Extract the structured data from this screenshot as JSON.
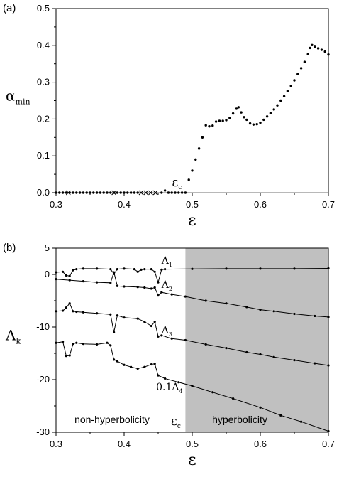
{
  "chart_data": [
    {
      "panel_label": "(a)",
      "type": "scatter",
      "xlabel": "ε",
      "ylabel": {
        "main": "α",
        "sub": "min"
      },
      "xlim": [
        0.3,
        0.7
      ],
      "ylim": [
        0,
        0.5
      ],
      "x_ticks": [
        "0.3",
        "0.4",
        "0.5",
        "0.6",
        "0.7"
      ],
      "y_ticks": [
        "0.0",
        "0.1",
        "0.2",
        "0.3",
        "0.4",
        "0.5"
      ],
      "annotation": {
        "main": "ε",
        "sub": "c",
        "x": 0.487,
        "y": 0.018
      },
      "baseline_y": 0.0,
      "series": [
        {
          "marker": "dot",
          "points": [
            [
              0.3,
              0
            ],
            [
              0.305,
              0
            ],
            [
              0.31,
              0
            ],
            [
              0.315,
              0
            ],
            [
              0.32,
              0
            ],
            [
              0.325,
              0
            ],
            [
              0.33,
              0
            ],
            [
              0.335,
              0
            ],
            [
              0.34,
              0
            ],
            [
              0.345,
              0
            ],
            [
              0.35,
              0
            ],
            [
              0.355,
              0
            ],
            [
              0.36,
              0
            ],
            [
              0.365,
              0
            ],
            [
              0.37,
              0
            ],
            [
              0.375,
              0
            ],
            [
              0.38,
              0
            ],
            [
              0.385,
              0
            ],
            [
              0.39,
              0
            ],
            [
              0.395,
              0
            ],
            [
              0.4,
              0
            ],
            [
              0.405,
              0
            ],
            [
              0.41,
              0
            ],
            [
              0.415,
              0
            ],
            [
              0.42,
              0
            ],
            [
              0.455,
              0
            ],
            [
              0.46,
              0.006
            ],
            [
              0.465,
              0
            ],
            [
              0.47,
              0
            ],
            [
              0.475,
              0
            ],
            [
              0.48,
              0
            ],
            [
              0.485,
              0
            ],
            [
              0.49,
              0
            ],
            [
              0.495,
              0.035
            ],
            [
              0.5,
              0.06
            ],
            [
              0.505,
              0.09
            ],
            [
              0.51,
              0.12
            ],
            [
              0.515,
              0.15
            ],
            [
              0.52,
              0.183
            ],
            [
              0.525,
              0.18
            ],
            [
              0.53,
              0.182
            ],
            [
              0.535,
              0.193
            ],
            [
              0.54,
              0.195
            ],
            [
              0.545,
              0.195
            ],
            [
              0.55,
              0.197
            ],
            [
              0.555,
              0.203
            ],
            [
              0.56,
              0.215
            ],
            [
              0.565,
              0.228
            ],
            [
              0.568,
              0.232
            ],
            [
              0.572,
              0.218
            ],
            [
              0.576,
              0.205
            ],
            [
              0.58,
              0.198
            ],
            [
              0.585,
              0.188
            ],
            [
              0.59,
              0.185
            ],
            [
              0.595,
              0.186
            ],
            [
              0.6,
              0.19
            ],
            [
              0.605,
              0.198
            ],
            [
              0.61,
              0.207
            ],
            [
              0.615,
              0.216
            ],
            [
              0.62,
              0.226
            ],
            [
              0.625,
              0.237
            ],
            [
              0.63,
              0.25
            ],
            [
              0.635,
              0.262
            ],
            [
              0.64,
              0.276
            ],
            [
              0.645,
              0.29
            ],
            [
              0.65,
              0.305
            ],
            [
              0.655,
              0.322
            ],
            [
              0.66,
              0.338
            ],
            [
              0.665,
              0.355
            ],
            [
              0.67,
              0.376
            ],
            [
              0.673,
              0.393
            ],
            [
              0.676,
              0.401
            ],
            [
              0.68,
              0.396
            ],
            [
              0.685,
              0.392
            ],
            [
              0.69,
              0.388
            ],
            [
              0.695,
              0.383
            ],
            [
              0.7,
              0.375
            ]
          ]
        },
        {
          "marker": "x",
          "points": [
            [
              0.318,
              0
            ],
            [
              0.385,
              0
            ],
            [
              0.425,
              0
            ],
            [
              0.432,
              0
            ],
            [
              0.439,
              0
            ],
            [
              0.446,
              0
            ]
          ]
        }
      ]
    },
    {
      "panel_label": "(b)",
      "type": "line",
      "xlabel": "ε",
      "ylabel": {
        "main": "Λ",
        "sub": "k"
      },
      "xlim": [
        0.3,
        0.7
      ],
      "ylim": [
        -30,
        5
      ],
      "x_ticks": [
        "0.3",
        "0.4",
        "0.5",
        "0.6",
        "0.7"
      ],
      "y_ticks": [
        "5",
        "0",
        "-10",
        "-20",
        "-30"
      ],
      "shaded_region": {
        "from": 0.49,
        "to": 0.7,
        "color": "#c0c0c0"
      },
      "region_labels": [
        "non-hyperbolicity",
        "hyperbolicity"
      ],
      "annotation": {
        "main": "ε",
        "sub": "c"
      },
      "series": [
        {
          "label_main": "Λ",
          "label_sub": "1",
          "label_at": [
            0.455,
            2.0
          ],
          "points": [
            [
              0.3,
              0.4
            ],
            [
              0.31,
              0.5
            ],
            [
              0.315,
              -0.2
            ],
            [
              0.32,
              -0.3
            ],
            [
              0.325,
              0.8
            ],
            [
              0.33,
              1.0
            ],
            [
              0.34,
              1.1
            ],
            [
              0.36,
              1.1
            ],
            [
              0.38,
              1.0
            ],
            [
              0.385,
              0.1
            ],
            [
              0.39,
              1.0
            ],
            [
              0.4,
              1.1
            ],
            [
              0.415,
              1.0
            ],
            [
              0.42,
              0.5
            ],
            [
              0.425,
              0.9
            ],
            [
              0.43,
              1.0
            ],
            [
              0.44,
              1.0
            ],
            [
              0.445,
              0.5
            ],
            [
              0.45,
              -1.5
            ],
            [
              0.455,
              0.9
            ],
            [
              0.46,
              1.0
            ],
            [
              0.5,
              1.05
            ],
            [
              0.55,
              1.1
            ],
            [
              0.6,
              1.1
            ],
            [
              0.65,
              1.1
            ],
            [
              0.7,
              1.15
            ]
          ]
        },
        {
          "label_main": "Λ",
          "label_sub": "2",
          "label_at": [
            0.455,
            -2.6
          ],
          "points": [
            [
              0.3,
              -0.9
            ],
            [
              0.32,
              -1.1
            ],
            [
              0.34,
              -1.3
            ],
            [
              0.36,
              -1.5
            ],
            [
              0.38,
              -1.6
            ],
            [
              0.385,
              0.4
            ],
            [
              0.39,
              -2.2
            ],
            [
              0.4,
              -2.3
            ],
            [
              0.42,
              -2.4
            ],
            [
              0.43,
              -2.5
            ],
            [
              0.44,
              -2.7
            ],
            [
              0.445,
              -2.5
            ],
            [
              0.45,
              -4.0
            ],
            [
              0.455,
              -3.4
            ],
            [
              0.47,
              -3.8
            ],
            [
              0.49,
              -4.2
            ],
            [
              0.52,
              -5.0
            ],
            [
              0.55,
              -5.5
            ],
            [
              0.58,
              -6.2
            ],
            [
              0.6,
              -6.7
            ],
            [
              0.62,
              -7.0
            ],
            [
              0.65,
              -7.5
            ],
            [
              0.68,
              -7.9
            ],
            [
              0.7,
              -8.1
            ]
          ]
        },
        {
          "label_main": "Λ",
          "label_sub": "3",
          "label_at": [
            0.455,
            -11.2
          ],
          "points": [
            [
              0.3,
              -7.0
            ],
            [
              0.31,
              -6.9
            ],
            [
              0.315,
              -6.3
            ],
            [
              0.32,
              -5.5
            ],
            [
              0.325,
              -7.0
            ],
            [
              0.33,
              -7.1
            ],
            [
              0.34,
              -7.2
            ],
            [
              0.36,
              -7.4
            ],
            [
              0.38,
              -7.6
            ],
            [
              0.385,
              -11.0
            ],
            [
              0.39,
              -7.8
            ],
            [
              0.4,
              -8.2
            ],
            [
              0.42,
              -8.4
            ],
            [
              0.43,
              -9.0
            ],
            [
              0.44,
              -9.8
            ],
            [
              0.445,
              -9.0
            ],
            [
              0.45,
              -11.8
            ],
            [
              0.455,
              -11.6
            ],
            [
              0.47,
              -12.2
            ],
            [
              0.49,
              -12.5
            ],
            [
              0.52,
              -13.3
            ],
            [
              0.55,
              -14.0
            ],
            [
              0.58,
              -14.8
            ],
            [
              0.6,
              -15.2
            ],
            [
              0.62,
              -15.7
            ],
            [
              0.65,
              -16.3
            ],
            [
              0.68,
              -16.9
            ],
            [
              0.7,
              -17.3
            ]
          ]
        },
        {
          "label_main": "0.1Λ",
          "label_sub": "4",
          "label_at": [
            0.447,
            -22.0
          ],
          "points": [
            [
              0.3,
              -13.0
            ],
            [
              0.31,
              -12.8
            ],
            [
              0.315,
              -15.5
            ],
            [
              0.32,
              -15.4
            ],
            [
              0.325,
              -13.2
            ],
            [
              0.33,
              -13.0
            ],
            [
              0.34,
              -13.2
            ],
            [
              0.36,
              -13.3
            ],
            [
              0.375,
              -13.0
            ],
            [
              0.38,
              -13.5
            ],
            [
              0.385,
              -16.2
            ],
            [
              0.39,
              -16.5
            ],
            [
              0.4,
              -17.2
            ],
            [
              0.41,
              -17.6
            ],
            [
              0.42,
              -17.9
            ],
            [
              0.43,
              -17.6
            ],
            [
              0.44,
              -17.1
            ],
            [
              0.445,
              -17.0
            ],
            [
              0.45,
              -19.2
            ],
            [
              0.46,
              -19.8
            ],
            [
              0.48,
              -20.5
            ],
            [
              0.5,
              -21.2
            ],
            [
              0.53,
              -22.4
            ],
            [
              0.56,
              -23.6
            ],
            [
              0.6,
              -25.3
            ],
            [
              0.63,
              -26.8
            ],
            [
              0.66,
              -28.0
            ],
            [
              0.7,
              -29.8
            ]
          ]
        }
      ]
    }
  ]
}
